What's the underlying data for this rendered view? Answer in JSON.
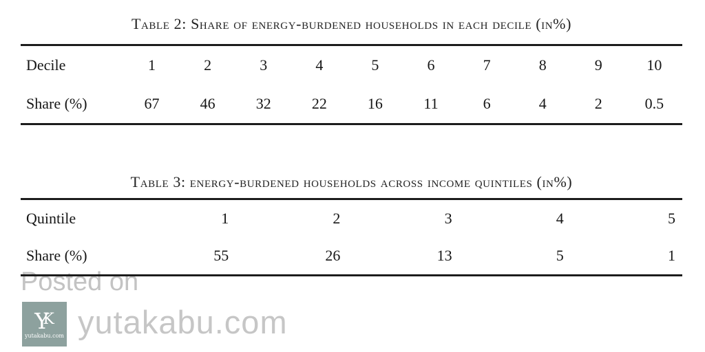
{
  "table2": {
    "caption": "Table 2: Share of energy-burdened households in each decile (in%)",
    "rows": [
      {
        "label": "Decile",
        "values": [
          "1",
          "2",
          "3",
          "4",
          "5",
          "6",
          "7",
          "8",
          "9",
          "10"
        ]
      },
      {
        "label": "Share (%)",
        "values": [
          "67",
          "46",
          "32",
          "22",
          "16",
          "11",
          "6",
          "4",
          "2",
          "0.5"
        ]
      }
    ]
  },
  "table3": {
    "caption": "Table 3: energy-burdened households across income quintiles (in%)",
    "rows": [
      {
        "label": "Quintile",
        "values": [
          "1",
          "2",
          "3",
          "4",
          "5"
        ]
      },
      {
        "label": "Share (%)",
        "values": [
          "55",
          "26",
          "13",
          "5",
          "1"
        ]
      }
    ]
  },
  "watermark": {
    "posted_on": "Posted on",
    "site": "yutakabu.com",
    "logo_letter_y": "Y",
    "logo_letter_k": "K",
    "logo_caption": "yutakabu.com",
    "logo_color": "#8da19e",
    "text_color": "#c6c6c6"
  }
}
